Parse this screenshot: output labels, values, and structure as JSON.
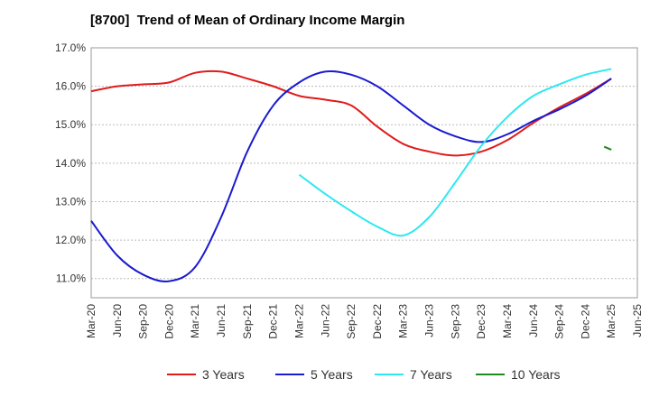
{
  "chart_data": {
    "type": "line",
    "title": "[8700]  Trend of Mean of Ordinary Income Margin",
    "xlabel": "",
    "ylabel": "",
    "categories": [
      "Mar-20",
      "Jun-20",
      "Sep-20",
      "Dec-20",
      "Mar-21",
      "Jun-21",
      "Sep-21",
      "Dec-21",
      "Mar-22",
      "Jun-22",
      "Sep-22",
      "Dec-22",
      "Mar-23",
      "Jun-23",
      "Sep-23",
      "Dec-23",
      "Mar-24",
      "Jun-24",
      "Sep-24",
      "Dec-24",
      "Mar-25",
      "Jun-25"
    ],
    "ylim": [
      10.5,
      17.0
    ],
    "yticks": [
      11.0,
      12.0,
      13.0,
      14.0,
      15.0,
      16.0,
      17.0
    ],
    "ytick_labels": [
      "11.0%",
      "12.0%",
      "13.0%",
      "14.0%",
      "15.0%",
      "16.0%",
      "17.0%"
    ],
    "grid": true,
    "legend_position": "bottom",
    "series": [
      {
        "name": "3 Years",
        "color": "#e01b1b",
        "values": [
          15.87,
          16.0,
          16.05,
          16.1,
          16.35,
          16.38,
          16.2,
          16.0,
          15.75,
          15.65,
          15.5,
          14.95,
          14.5,
          14.3,
          14.2,
          14.3,
          14.6,
          15.05,
          15.45,
          15.8,
          16.2,
          null
        ]
      },
      {
        "name": "5 Years",
        "color": "#1a1ad0",
        "values": [
          12.5,
          11.6,
          11.1,
          10.93,
          11.3,
          12.6,
          14.3,
          15.5,
          16.1,
          16.38,
          16.3,
          16.0,
          15.5,
          15.0,
          14.7,
          14.55,
          14.75,
          15.1,
          15.4,
          15.75,
          16.2,
          null
        ]
      },
      {
        "name": "7 Years",
        "color": "#2ee8f0",
        "values": [
          null,
          null,
          null,
          null,
          null,
          null,
          null,
          null,
          13.7,
          13.2,
          12.75,
          12.35,
          12.12,
          12.6,
          13.5,
          14.45,
          15.2,
          15.75,
          16.05,
          16.3,
          16.45,
          null
        ]
      },
      {
        "name": "10 Years",
        "color": "#1f8a1f",
        "values": [
          null,
          null,
          null,
          null,
          null,
          null,
          null,
          null,
          null,
          null,
          null,
          null,
          null,
          null,
          null,
          null,
          null,
          null,
          null,
          null,
          [
            14.43,
            14.35
          ],
          null
        ]
      }
    ]
  }
}
